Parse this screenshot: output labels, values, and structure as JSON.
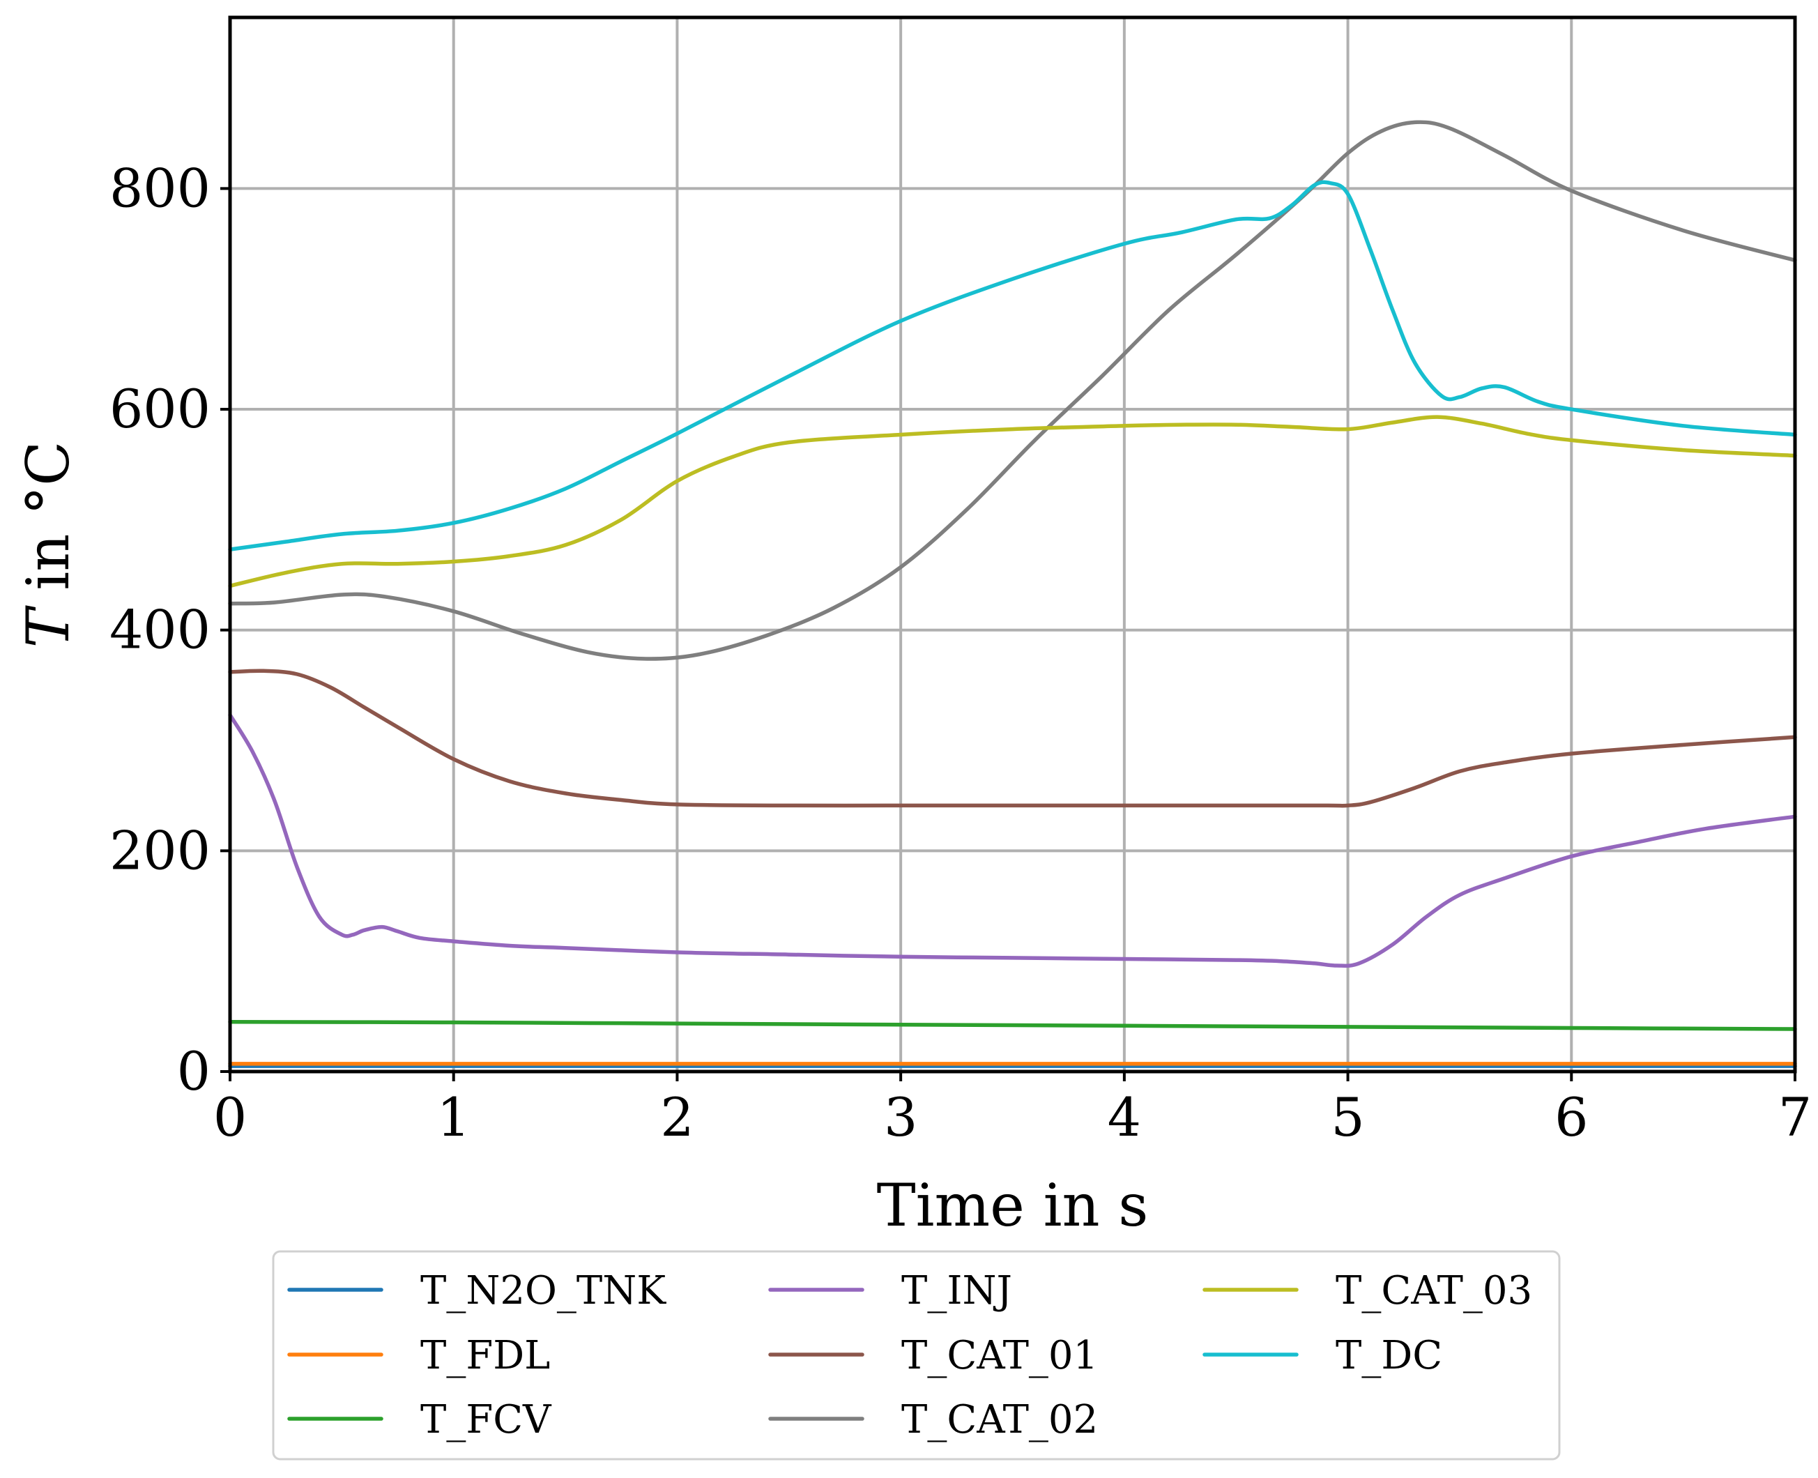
{
  "chart_data": {
    "type": "line",
    "title": "",
    "xlabel": "Time in s",
    "ylabel_var": "T",
    "ylabel_rest": " in °C",
    "xlim": [
      0,
      7
    ],
    "ylim": [
      0,
      955
    ],
    "xticks": [
      0,
      1,
      2,
      3,
      4,
      5,
      6,
      7
    ],
    "yticks": [
      0,
      200,
      400,
      600,
      800
    ],
    "grid": true,
    "legend_position": "bottom, below axes, 3 columns",
    "series": [
      {
        "name": "T_N2O_TNK",
        "color": "#1f77b4",
        "x": [
          0,
          7
        ],
        "y": [
          5,
          5
        ]
      },
      {
        "name": "T_FDL",
        "color": "#ff7f0e",
        "x": [
          0,
          7
        ],
        "y": [
          7,
          7
        ]
      },
      {
        "name": "T_FCV",
        "color": "#2ca02c",
        "x": [
          0,
          1,
          2,
          3,
          4,
          5,
          6,
          7
        ],
        "y": [
          45,
          44.5,
          43.5,
          42.5,
          41.5,
          40.5,
          39.5,
          38.5
        ]
      },
      {
        "name": "T_INJ",
        "color": "#9467bd",
        "x": [
          0,
          0.1,
          0.2,
          0.3,
          0.4,
          0.5,
          0.55,
          0.6,
          0.68,
          0.75,
          0.85,
          1.0,
          1.25,
          1.5,
          2.0,
          2.5,
          3.0,
          3.5,
          4.0,
          4.5,
          4.7,
          4.85,
          4.95,
          5.05,
          5.2,
          5.35,
          5.5,
          5.7,
          6.0,
          6.3,
          6.6,
          7.0
        ],
        "y": [
          323,
          290,
          245,
          185,
          140,
          124,
          124,
          128,
          131,
          127,
          121,
          118,
          114,
          112,
          108,
          106,
          104,
          103,
          102,
          101,
          100,
          98,
          96,
          98,
          115,
          140,
          160,
          175,
          195,
          208,
          220,
          231
        ]
      },
      {
        "name": "T_CAT_01",
        "color": "#8c564b",
        "x": [
          0,
          0.15,
          0.3,
          0.45,
          0.6,
          0.75,
          1.0,
          1.25,
          1.5,
          1.75,
          2.0,
          2.5,
          3.0,
          3.5,
          4.0,
          4.5,
          4.9,
          5.0,
          5.1,
          5.3,
          5.5,
          5.7,
          6.0,
          6.5,
          7.0
        ],
        "y": [
          362,
          363,
          360,
          348,
          330,
          312,
          283,
          263,
          252,
          246,
          242,
          241,
          241,
          241,
          241,
          241,
          241,
          241,
          244,
          257,
          272,
          280,
          288,
          296,
          303
        ]
      },
      {
        "name": "T_CAT_02",
        "color": "#7f7f7f",
        "x": [
          0,
          0.2,
          0.5,
          0.7,
          1.0,
          1.3,
          1.6,
          1.85,
          2.1,
          2.4,
          2.7,
          3.0,
          3.3,
          3.6,
          3.9,
          4.2,
          4.5,
          4.8,
          5.0,
          5.15,
          5.3,
          5.45,
          5.7,
          6.0,
          6.5,
          7.0
        ],
        "y": [
          424,
          425,
          432,
          430,
          417,
          397,
          380,
          374,
          378,
          395,
          420,
          457,
          510,
          572,
          630,
          690,
          740,
          793,
          832,
          852,
          860,
          855,
          830,
          798,
          762,
          735
        ]
      },
      {
        "name": "T_CAT_03",
        "color": "#bcbd22",
        "x": [
          0,
          0.25,
          0.5,
          0.75,
          1.0,
          1.25,
          1.5,
          1.75,
          2.0,
          2.25,
          2.5,
          3.0,
          3.5,
          4.0,
          4.25,
          4.5,
          4.75,
          5.0,
          5.2,
          5.4,
          5.6,
          5.8,
          6.0,
          6.5,
          7.0
        ],
        "y": [
          440,
          452,
          460,
          460,
          462,
          467,
          477,
          500,
          535,
          557,
          570,
          577,
          582,
          585,
          586,
          586,
          584,
          582,
          588,
          593,
          587,
          578,
          572,
          563,
          558
        ]
      },
      {
        "name": "T_DC",
        "color": "#17becf",
        "x": [
          0,
          0.25,
          0.5,
          0.75,
          1.0,
          1.25,
          1.5,
          1.75,
          2.0,
          2.5,
          3.0,
          3.5,
          4.0,
          4.25,
          4.5,
          4.65,
          4.75,
          4.85,
          4.92,
          5.0,
          5.1,
          5.2,
          5.3,
          5.42,
          5.5,
          5.6,
          5.7,
          5.85,
          6.0,
          6.5,
          7.0
        ],
        "y": [
          473,
          480,
          487,
          490,
          497,
          510,
          528,
          553,
          578,
          630,
          680,
          718,
          750,
          760,
          772,
          773,
          785,
          803,
          805,
          795,
          745,
          690,
          642,
          612,
          611,
          619,
          620,
          607,
          600,
          585,
          577
        ]
      }
    ]
  }
}
